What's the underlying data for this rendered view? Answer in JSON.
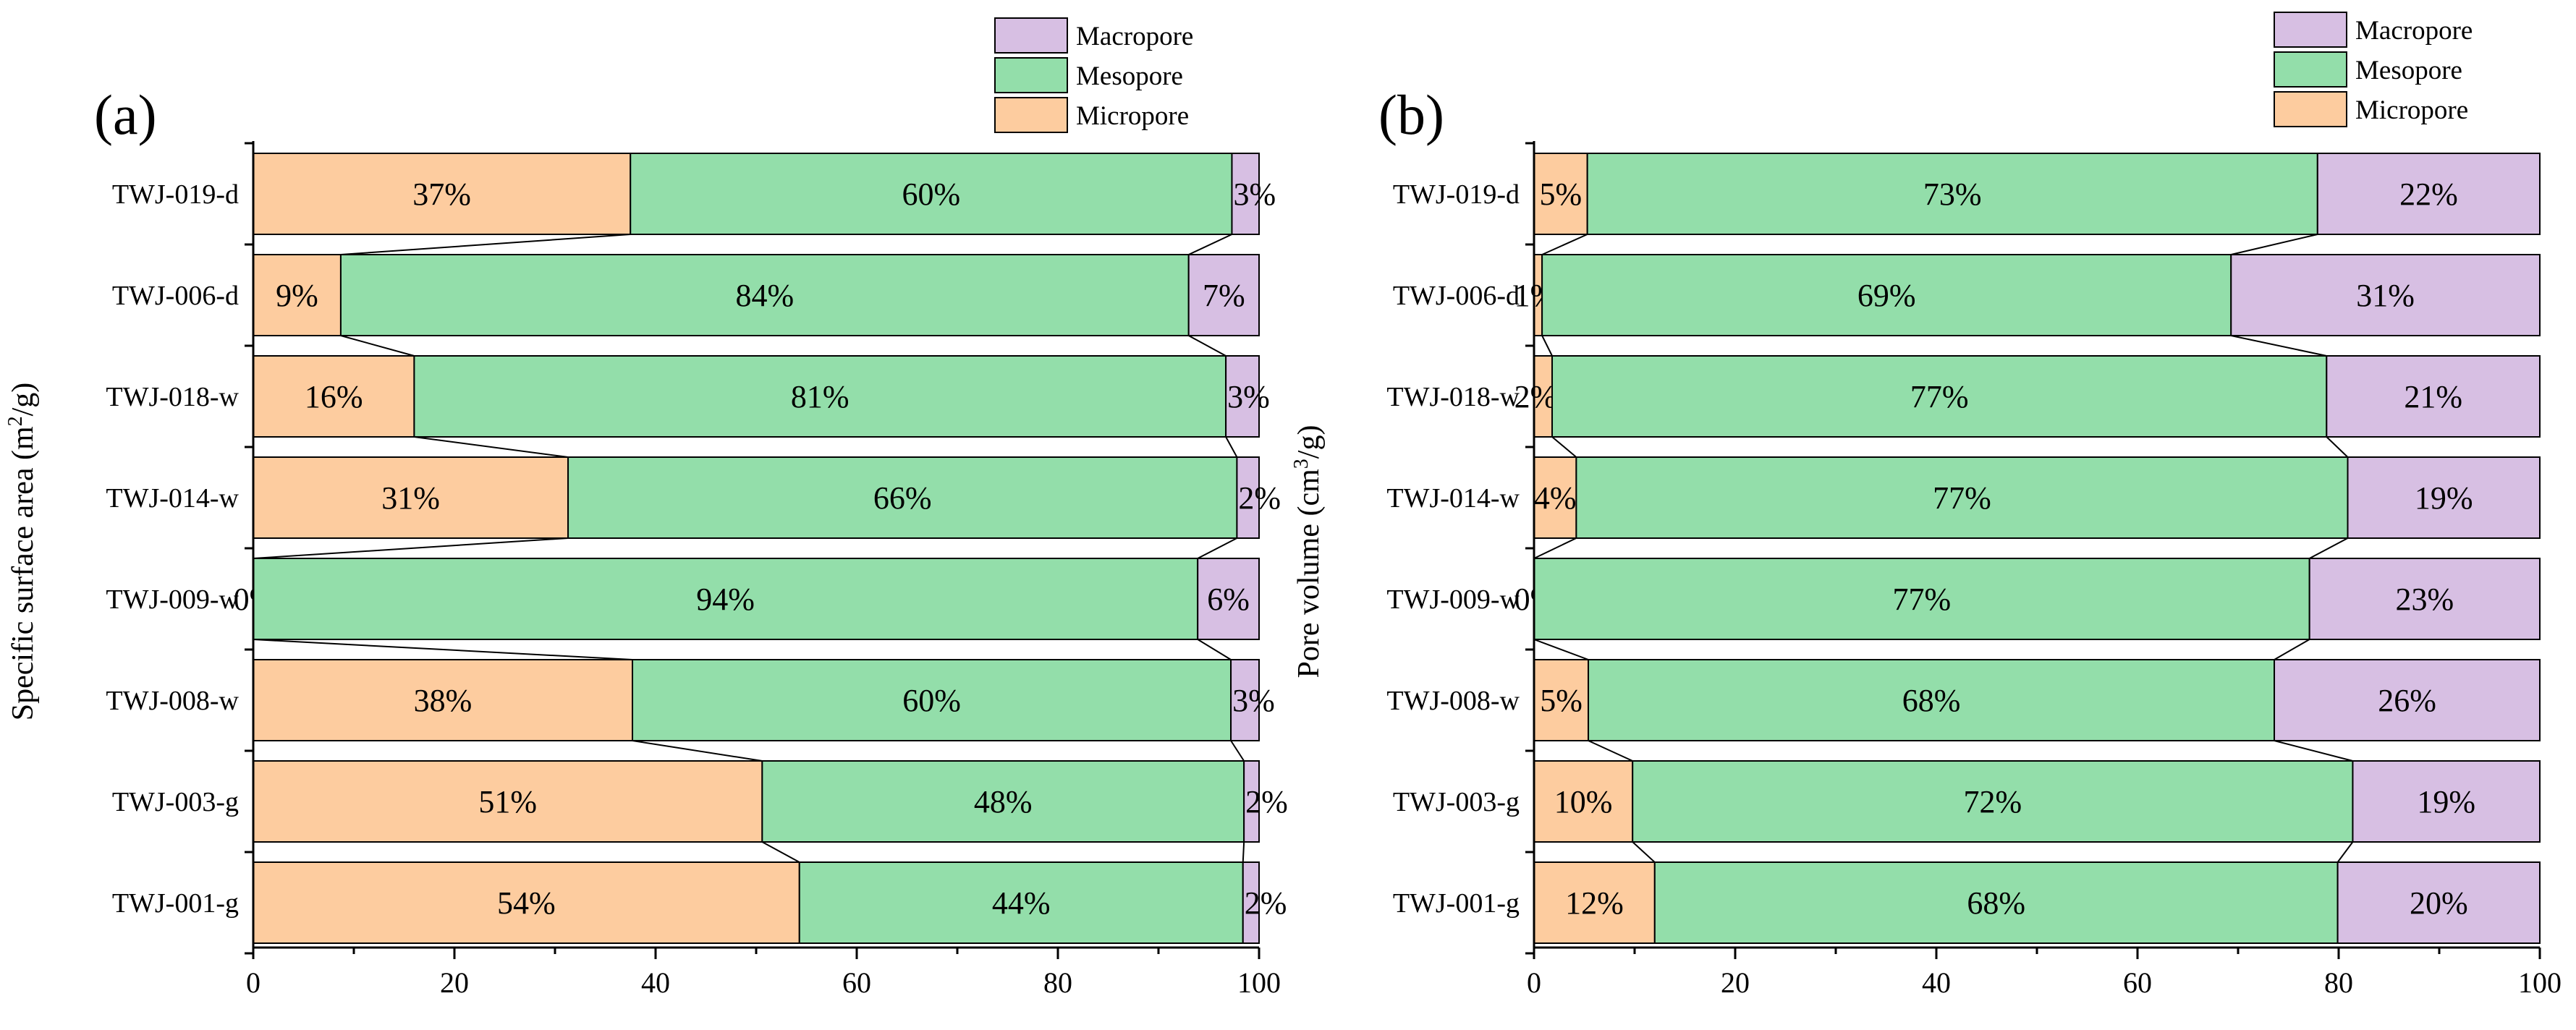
{
  "colors": {
    "micropore": "#fdcc9f",
    "mesopore": "#93deaa",
    "macropore": "#d7bfe3"
  },
  "chart_data": [
    {
      "type": "bar",
      "orientation": "horizontal",
      "stacked": true,
      "panel_label": "(a)",
      "title": "",
      "ylabel": "Specific surface area (m²/g)",
      "ylabel_parts": {
        "pre": "Specific surface area (m",
        "sup": "2",
        "post": "/g)"
      },
      "xlabel": "",
      "xlim": [
        0,
        100
      ],
      "xticks": [
        "0",
        "20",
        "40",
        "60",
        "80",
        "100"
      ],
      "legend_position": "top-right",
      "categories": [
        "TWJ-019-d",
        "TWJ-006-d",
        "TWJ-018-w",
        "TWJ-014-w",
        "TWJ-009-w",
        "TWJ-008-w",
        "TWJ-003-g",
        "TWJ-001-g"
      ],
      "series": [
        {
          "name": "Micropore",
          "values": [
            37.5,
            8.7,
            16.0,
            31.3,
            0.0,
            37.7,
            50.6,
            54.3
          ],
          "labels": [
            "37%",
            "9%",
            "16%",
            "31%",
            "0%",
            "38%",
            "51%",
            "54%"
          ]
        },
        {
          "name": "Mesopore",
          "values": [
            59.8,
            84.3,
            80.7,
            66.5,
            93.9,
            59.5,
            47.9,
            44.1
          ],
          "labels": [
            "60%",
            "84%",
            "81%",
            "66%",
            "94%",
            "60%",
            "48%",
            "44%"
          ]
        },
        {
          "name": "Macropore",
          "values": [
            2.7,
            7.0,
            3.3,
            2.2,
            6.1,
            2.8,
            1.5,
            1.6
          ],
          "labels": [
            "3%",
            "7%",
            "3%",
            "2%",
            "6%",
            "3%",
            "2%",
            "2%"
          ]
        }
      ]
    },
    {
      "type": "bar",
      "orientation": "horizontal",
      "stacked": true,
      "panel_label": "(b)",
      "title": "",
      "ylabel": "Pore volume (cm³/g)",
      "ylabel_parts": {
        "pre": "Pore volume (cm",
        "sup": "3",
        "post": "/g)"
      },
      "xlabel": "",
      "xlim": [
        0,
        100
      ],
      "xticks": [
        "0",
        "20",
        "40",
        "60",
        "80",
        "100"
      ],
      "legend_position": "top-right",
      "categories": [
        "TWJ-019-d",
        "TWJ-006-d",
        "TWJ-018-w",
        "TWJ-014-w",
        "TWJ-009-w",
        "TWJ-008-w",
        "TWJ-003-g",
        "TWJ-001-g"
      ],
      "series": [
        {
          "name": "Micropore",
          "values": [
            5.3,
            0.8,
            1.8,
            4.2,
            0.0,
            5.4,
            9.8,
            12.0
          ],
          "labels": [
            "5%",
            "1%",
            "2%",
            "4%",
            "0%",
            "5%",
            "10%",
            "12%"
          ]
        },
        {
          "name": "Mesopore",
          "values": [
            72.6,
            68.5,
            77.0,
            76.7,
            77.1,
            68.2,
            71.6,
            67.9
          ],
          "labels": [
            "73%",
            "69%",
            "77%",
            "77%",
            "77%",
            "68%",
            "72%",
            "68%"
          ]
        },
        {
          "name": "Macropore",
          "values": [
            22.1,
            30.7,
            21.2,
            19.1,
            22.9,
            26.4,
            18.6,
            20.1
          ],
          "labels": [
            "22%",
            "31%",
            "21%",
            "19%",
            "23%",
            "26%",
            "19%",
            "20%"
          ]
        }
      ]
    }
  ]
}
